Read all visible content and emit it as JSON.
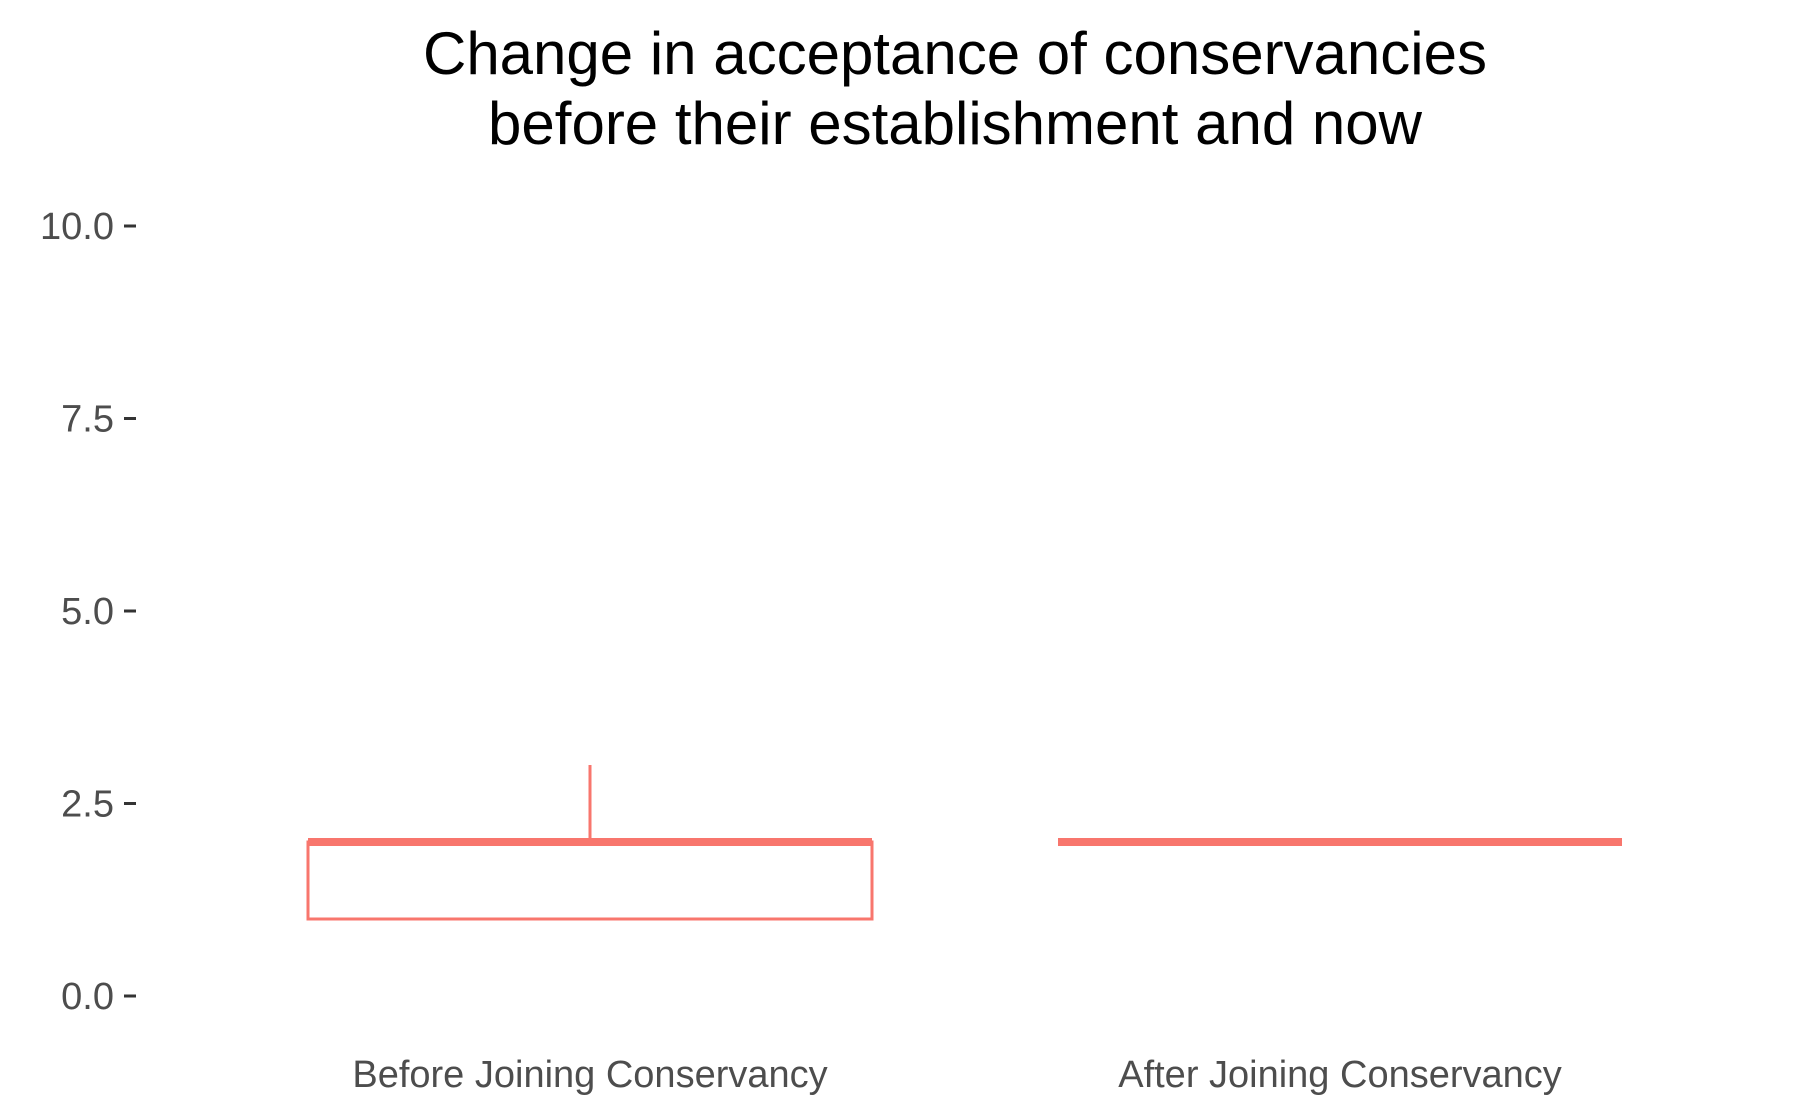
{
  "chart_data": {
    "type": "box",
    "title": "Change in acceptance of conservancies\nbefore their establishment and now",
    "xlabel": "",
    "ylabel": "",
    "ylim": [
      0,
      10
    ],
    "y_ticks": [
      "0.0",
      "2.5",
      "5.0",
      "7.5",
      "10.0"
    ],
    "categories": [
      "Before Joining Conservancy",
      "After Joining Conservancy"
    ],
    "boxes": [
      {
        "category": "Before Joining Conservancy",
        "min": 1,
        "q1": 1,
        "median": 2,
        "q3": 2,
        "max": 3
      },
      {
        "category": "After Joining Conservancy",
        "min": 2,
        "q1": 2,
        "median": 2,
        "q3": 2,
        "max": 2
      }
    ],
    "grid": false,
    "legend": "none",
    "box_color": "#F8766D"
  }
}
